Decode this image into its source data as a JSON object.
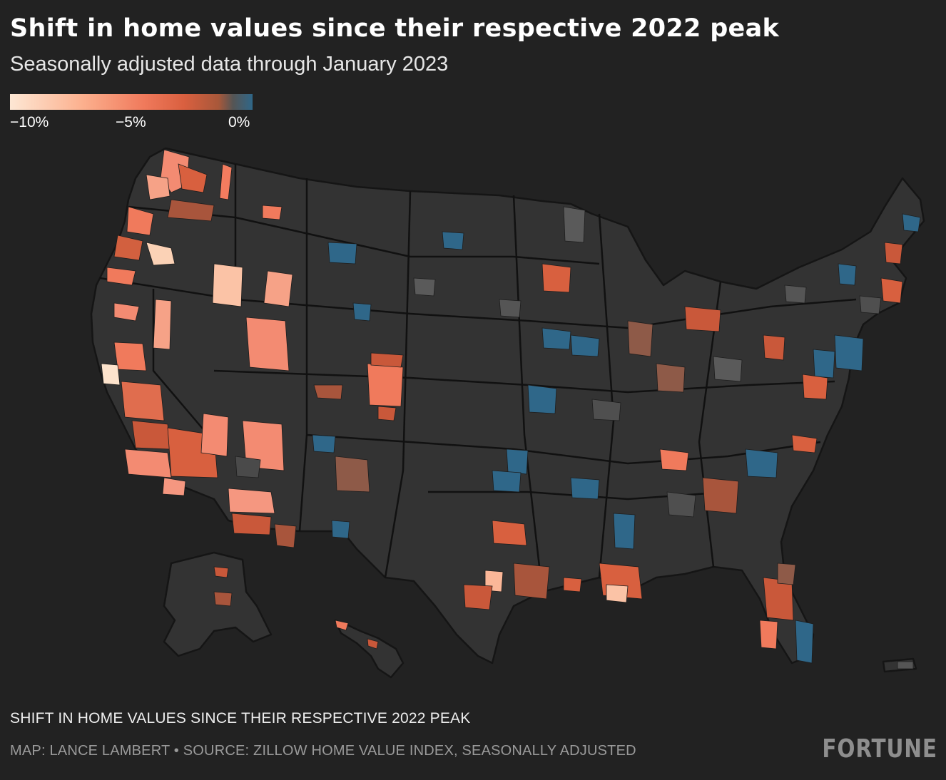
{
  "header": {
    "title": "Shift in home values since their respective 2022 peak",
    "subtitle": "Seasonally adjusted data through January 2023"
  },
  "legend": {
    "tick_labels": [
      "−10%",
      "−5%",
      "0%"
    ],
    "scale_min_pct": -10,
    "scale_mid_pct": -5,
    "scale_max_pct": 0
  },
  "colors": {
    "background": "#222222",
    "land": "#333333",
    "border": "#141414",
    "scale_low": "#fde7d4",
    "scale_mid": "#f07a5c",
    "scale_dark": "#a8583a",
    "scale_zero_gray": "#555555",
    "scale_high": "#2f6789",
    "footer_text": "#9a9a9a"
  },
  "footer": {
    "caption": "SHIFT IN HOME VALUES SINCE THEIR RESPECTIVE 2022 PEAK",
    "source": "MAP: LANCE LAMBERT • SOURCE: ZILLOW HOME VALUE INDEX, SEASONALLY ADJUSTED",
    "brand": "FORTUNE"
  }
}
